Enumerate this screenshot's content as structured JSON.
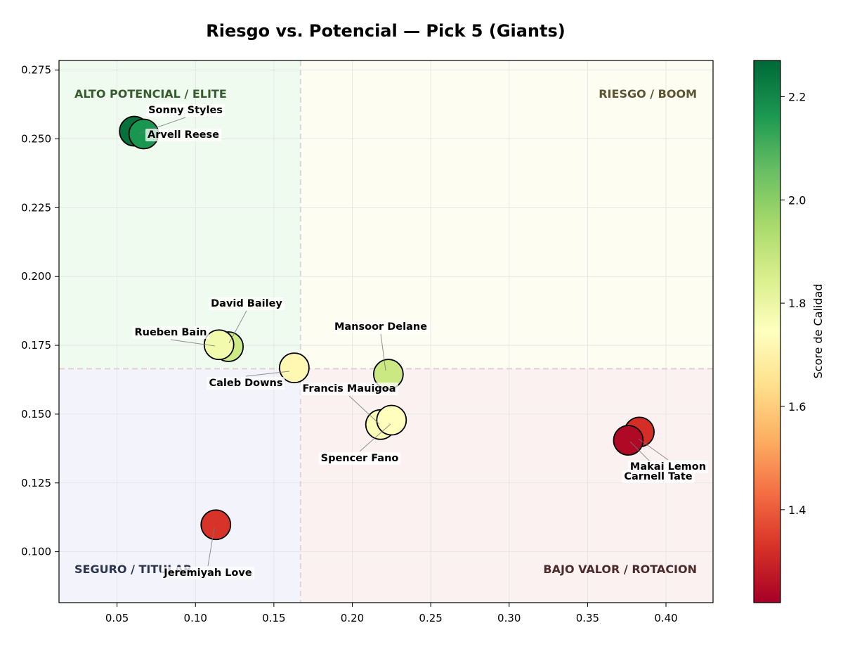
{
  "chart_data": {
    "type": "scatter",
    "title": "Riesgo vs. Potencial — Pick 5 (Giants)",
    "xlabel": "",
    "ylabel": "",
    "xlim": [
      0.013,
      0.43
    ],
    "ylim": [
      0.0815,
      0.2785
    ],
    "x_ticks": [
      0.05,
      0.1,
      0.15,
      0.2,
      0.25,
      0.3,
      0.35,
      0.4
    ],
    "x_tick_labels": [
      "0.05",
      "0.10",
      "0.15",
      "0.20",
      "0.25",
      "0.30",
      "0.35",
      "0.40"
    ],
    "y_ticks": [
      0.1,
      0.125,
      0.15,
      0.175,
      0.2,
      0.225,
      0.25,
      0.275
    ],
    "y_tick_labels": [
      "0.100",
      "0.125",
      "0.150",
      "0.175",
      "0.200",
      "0.225",
      "0.250",
      "0.275"
    ],
    "grid": true,
    "threshold_x": 0.167,
    "threshold_y": 0.1665,
    "quadrants": [
      {
        "label": "ALTO POTENCIAL / ELITE",
        "position": "top-left",
        "fill": "#eefbee",
        "text_color": "#355b2f"
      },
      {
        "label": "RIESGO / BOOM",
        "position": "top-right",
        "fill": "#fdfdf2",
        "text_color": "#5c5432"
      },
      {
        "label": "SEGURO / TITULAR",
        "position": "bottom-left",
        "fill": "#f3f4fb",
        "text_color": "#2c3550"
      },
      {
        "label": "BAJO VALOR / ROTACION",
        "position": "bottom-right",
        "fill": "#fbf1f1",
        "text_color": "#4e2b2b"
      }
    ],
    "points": [
      {
        "name": "Sonny Styles",
        "x": 0.061,
        "y": 0.2528,
        "score": 2.25
      },
      {
        "name": "Arvell Reese",
        "x": 0.067,
        "y": 0.2518,
        "score": 2.17
      },
      {
        "name": "David Bailey",
        "x": 0.121,
        "y": 0.1745,
        "score": 1.87
      },
      {
        "name": "Rueben Bain",
        "x": 0.115,
        "y": 0.1752,
        "score": 1.78
      },
      {
        "name": "Caleb Downs",
        "x": 0.163,
        "y": 0.1668,
        "score": 1.72
      },
      {
        "name": "Mansoor Delane",
        "x": 0.223,
        "y": 0.1645,
        "score": 1.88
      },
      {
        "name": "Francis Mauigoa",
        "x": 0.218,
        "y": 0.1462,
        "score": 1.76
      },
      {
        "name": "Spencer Fano",
        "x": 0.225,
        "y": 0.1478,
        "score": 1.74
      },
      {
        "name": "Makai Lemon",
        "x": 0.383,
        "y": 0.1435,
        "score": 1.32
      },
      {
        "name": "Carnell Tate",
        "x": 0.376,
        "y": 0.1405,
        "score": 1.24
      },
      {
        "name": "Jeremiyah Love",
        "x": 0.113,
        "y": 0.1098,
        "score": 1.33
      }
    ],
    "colorbar": {
      "label": "Score de Calidad",
      "min": 1.22,
      "max": 2.27,
      "ticks": [
        1.4,
        1.6,
        1.8,
        2.0,
        2.2
      ],
      "tick_labels": [
        "1.4",
        "1.6",
        "1.8",
        "2.0",
        "2.2"
      ],
      "colormap": [
        "#a50026",
        "#d73027",
        "#f46d43",
        "#fdae61",
        "#fee08b",
        "#ffffbf",
        "#d9ef8b",
        "#a6d96a",
        "#66bd63",
        "#1a9850",
        "#006837"
      ]
    }
  }
}
